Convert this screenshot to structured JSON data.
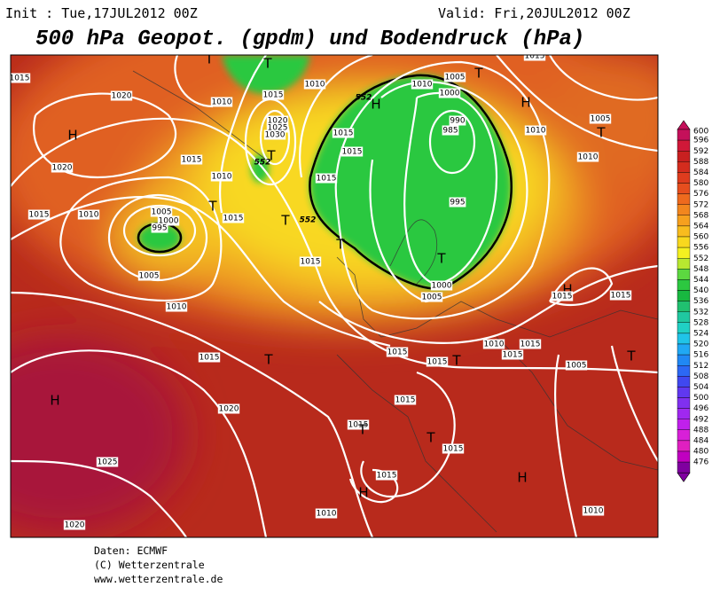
{
  "header": {
    "init": "Init : Tue,17JUL2012 00Z",
    "valid": "Valid: Fri,20JUL2012 00Z",
    "title": "500 hPa Geopot. (gpdm) und Bodendruck (hPa)"
  },
  "map": {
    "labels": [
      "1015",
      "1020",
      "H",
      "1020",
      "1015",
      "1010",
      "1005",
      "1000",
      "995",
      "1005",
      "1010",
      "1015",
      "H",
      "1020",
      "1025",
      "1020",
      "T",
      "1010",
      "1015",
      "1020",
      "1025",
      "1030",
      "T",
      "552",
      "1015",
      "1010",
      "T",
      "1015",
      "T",
      "552",
      "T",
      "1015",
      "1015",
      "1015",
      "1015",
      "1010",
      "552",
      "H",
      "1010",
      "1005",
      "1000",
      "T",
      "990",
      "985",
      "995",
      "T",
      "1000",
      "1005",
      "H",
      "1010",
      "1005",
      "T",
      "1010",
      "1015",
      "H",
      "1015",
      "1015",
      "1010",
      "1015",
      "1015",
      "T",
      "1015",
      "1015",
      "1005",
      "T",
      "1015",
      "1015",
      "T",
      "T",
      "1015",
      "1015",
      "H",
      "H",
      "1010",
      "1010",
      "T",
      "T"
    ]
  },
  "legend": {
    "levels": [
      600,
      596,
      592,
      588,
      584,
      580,
      576,
      572,
      568,
      564,
      560,
      556,
      552,
      548,
      544,
      540,
      536,
      532,
      528,
      524,
      520,
      516,
      512,
      508,
      504,
      500,
      496,
      492,
      488,
      484,
      480,
      476
    ],
    "colors": [
      "#c4105a",
      "#d01838",
      "#c82020",
      "#d42c1e",
      "#de3c1e",
      "#e64e1e",
      "#ee6a1e",
      "#f2861e",
      "#f6a01e",
      "#f8bc1e",
      "#f8d81e",
      "#f4f020",
      "#b8e830",
      "#5cd840",
      "#2cc840",
      "#18b840",
      "#20c070",
      "#20c8a0",
      "#20d0c4",
      "#20c4e8",
      "#20a8f4",
      "#2088f4",
      "#2c68f4",
      "#4048f0",
      "#6038f0",
      "#8030f0",
      "#a028f0",
      "#c020ec",
      "#d820d8",
      "#e020c0",
      "#c000c0",
      "#8000a0"
    ]
  },
  "footer": {
    "source": "Daten: ECMWF",
    "copyright": "(C) Wetterzentrale",
    "url": "www.wetterzentrale.de"
  }
}
